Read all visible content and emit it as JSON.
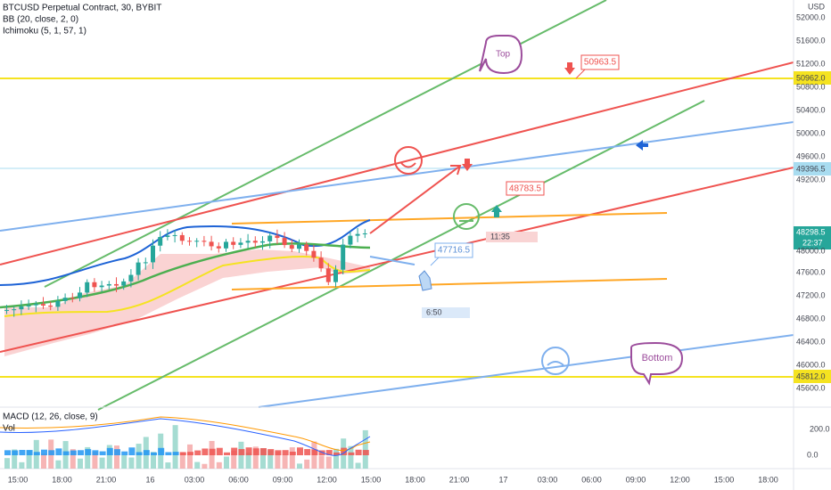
{
  "header": {
    "symbol": "BTCUSD Perpetual Contract, 30, BYBIT",
    "indicators": [
      "BB (20, close, 2, 0)",
      "Ichimoku (5, 1, 57, 1)"
    ]
  },
  "price_axis": {
    "currency": "USD",
    "labels": [
      "52000.0",
      "51600.0",
      "51200.0",
      "50800.0",
      "50400.0",
      "50000.0",
      "49600.0",
      "49200.0",
      "48000.0",
      "47600.0",
      "47200.0",
      "46800.0",
      "46400.0",
      "46000.0",
      "45600.0"
    ],
    "tags": [
      {
        "label": "50962.0"
      },
      {
        "label": "49396.5"
      },
      {
        "label": "48298.5",
        "countdown": "22:37"
      },
      {
        "label": "45812.0"
      }
    ]
  },
  "macd_pane": {
    "indicators": [
      "MACD (12, 26, close, 9)",
      "Vol"
    ],
    "axis_labels": [
      "200.0",
      "0.0"
    ]
  },
  "time_axis": {
    "labels": [
      "15:00",
      "18:00",
      "21:00",
      "16",
      "03:00",
      "06:00",
      "09:00",
      "12:00",
      "15:00",
      "18:00",
      "21:00",
      "17",
      "03:00",
      "06:00",
      "09:00",
      "12:00",
      "15:00",
      "18:00"
    ]
  },
  "annotations": {
    "top": "Top",
    "bottom": "Bottom",
    "price_tags": [
      "50963.5",
      "48783.5",
      "47716.5"
    ],
    "time_boxes": [
      "11:35",
      "6:50"
    ]
  }
}
